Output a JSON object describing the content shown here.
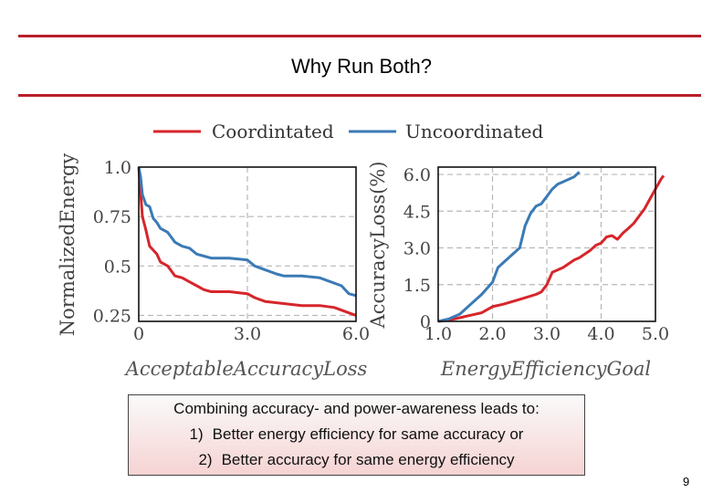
{
  "slide": {
    "title": "Why Run Both?",
    "page_number": "9",
    "callout": {
      "heading": "Combining accuracy- and power-awareness leads to:",
      "items": [
        {
          "num": "1)",
          "text": "Better energy efficiency for same accuracy or"
        },
        {
          "num": "2)",
          "text": "Better accuracy for same energy efficiency"
        }
      ]
    },
    "rule_color": "#b81f2a"
  },
  "legend": [
    {
      "name": "Coordintated",
      "color": "#d6262b"
    },
    {
      "name": "Uncoordinated",
      "color": "#3b7ab5"
    }
  ],
  "chart_data": [
    {
      "type": "line",
      "xlabel": "AcceptableAccuracyLoss",
      "ylabel": "NormalizedEnergy",
      "xlim": [
        0,
        6.0
      ],
      "ylim": [
        0.22,
        1.0
      ],
      "xticks": [
        "0",
        "3.0",
        "6.0"
      ],
      "yticks": [
        "0.25",
        "0.5",
        "0.75",
        "1.0"
      ],
      "xtick_values": [
        0,
        3.0,
        6.0
      ],
      "ytick_values": [
        0.25,
        0.5,
        0.75,
        1.0
      ],
      "grid": true,
      "series": [
        {
          "name": "Coordintated",
          "color": "#d6262b",
          "points": [
            [
              0,
              1.0
            ],
            [
              0.05,
              0.87
            ],
            [
              0.1,
              0.75
            ],
            [
              0.2,
              0.68
            ],
            [
              0.3,
              0.6
            ],
            [
              0.4,
              0.58
            ],
            [
              0.5,
              0.56
            ],
            [
              0.6,
              0.52
            ],
            [
              0.8,
              0.5
            ],
            [
              1.0,
              0.45
            ],
            [
              1.2,
              0.44
            ],
            [
              1.4,
              0.42
            ],
            [
              1.6,
              0.4
            ],
            [
              1.8,
              0.38
            ],
            [
              2.0,
              0.37
            ],
            [
              2.5,
              0.37
            ],
            [
              3.0,
              0.36
            ],
            [
              3.2,
              0.34
            ],
            [
              3.5,
              0.32
            ],
            [
              4.0,
              0.31
            ],
            [
              4.5,
              0.3
            ],
            [
              5.0,
              0.3
            ],
            [
              5.4,
              0.29
            ],
            [
              5.7,
              0.27
            ],
            [
              6.0,
              0.25
            ]
          ]
        },
        {
          "name": "Uncoordinated",
          "color": "#3b7ab5",
          "points": [
            [
              0,
              1.0
            ],
            [
              0.05,
              0.95
            ],
            [
              0.1,
              0.86
            ],
            [
              0.2,
              0.81
            ],
            [
              0.3,
              0.8
            ],
            [
              0.4,
              0.74
            ],
            [
              0.5,
              0.72
            ],
            [
              0.6,
              0.69
            ],
            [
              0.8,
              0.67
            ],
            [
              1.0,
              0.62
            ],
            [
              1.2,
              0.6
            ],
            [
              1.4,
              0.59
            ],
            [
              1.6,
              0.56
            ],
            [
              1.8,
              0.55
            ],
            [
              2.0,
              0.54
            ],
            [
              2.5,
              0.54
            ],
            [
              3.0,
              0.53
            ],
            [
              3.2,
              0.5
            ],
            [
              3.5,
              0.48
            ],
            [
              3.8,
              0.46
            ],
            [
              4.0,
              0.45
            ],
            [
              4.5,
              0.45
            ],
            [
              5.0,
              0.44
            ],
            [
              5.3,
              0.42
            ],
            [
              5.6,
              0.4
            ],
            [
              5.8,
              0.36
            ],
            [
              6.0,
              0.35
            ]
          ]
        }
      ]
    },
    {
      "type": "line",
      "xlabel": "EnergyEfficiencyGoal",
      "ylabel": "AccuracyLoss(%)",
      "xlim": [
        1.0,
        5.0
      ],
      "ylim": [
        0,
        6.3
      ],
      "xticks": [
        "1.0",
        "2.0",
        "3.0",
        "4.0",
        "5.0"
      ],
      "yticks": [
        "0",
        "1.5",
        "3.0",
        "4.5",
        "6.0"
      ],
      "xtick_values": [
        1.0,
        2.0,
        3.0,
        4.0,
        5.0
      ],
      "ytick_values": [
        0,
        1.5,
        3.0,
        4.5,
        6.0
      ],
      "grid": true,
      "series": [
        {
          "name": "Coordintated",
          "color": "#d6262b",
          "points": [
            [
              1.0,
              0
            ],
            [
              1.2,
              0.05
            ],
            [
              1.5,
              0.2
            ],
            [
              1.8,
              0.35
            ],
            [
              2.0,
              0.6
            ],
            [
              2.2,
              0.7
            ],
            [
              2.5,
              0.9
            ],
            [
              2.8,
              1.1
            ],
            [
              2.9,
              1.2
            ],
            [
              3.0,
              1.5
            ],
            [
              3.1,
              2.0
            ],
            [
              3.3,
              2.2
            ],
            [
              3.5,
              2.5
            ],
            [
              3.6,
              2.6
            ],
            [
              3.8,
              2.9
            ],
            [
              3.9,
              3.1
            ],
            [
              4.0,
              3.2
            ],
            [
              4.1,
              3.45
            ],
            [
              4.2,
              3.5
            ],
            [
              4.3,
              3.35
            ],
            [
              4.4,
              3.6
            ],
            [
              4.5,
              3.8
            ],
            [
              4.6,
              4.0
            ],
            [
              4.8,
              4.6
            ],
            [
              4.9,
              5.0
            ],
            [
              5.0,
              5.4
            ],
            [
              5.1,
              5.8
            ],
            [
              5.15,
              5.95
            ]
          ]
        },
        {
          "name": "Uncoordinated",
          "color": "#3b7ab5",
          "points": [
            [
              1.0,
              0
            ],
            [
              1.2,
              0.1
            ],
            [
              1.4,
              0.3
            ],
            [
              1.6,
              0.7
            ],
            [
              1.8,
              1.1
            ],
            [
              2.0,
              1.6
            ],
            [
              2.1,
              2.2
            ],
            [
              2.2,
              2.4
            ],
            [
              2.4,
              2.8
            ],
            [
              2.5,
              3.0
            ],
            [
              2.6,
              3.9
            ],
            [
              2.7,
              4.4
            ],
            [
              2.8,
              4.7
            ],
            [
              2.9,
              4.8
            ],
            [
              3.0,
              5.1
            ],
            [
              3.1,
              5.4
            ],
            [
              3.2,
              5.6
            ],
            [
              3.3,
              5.7
            ],
            [
              3.5,
              5.9
            ],
            [
              3.6,
              6.1
            ]
          ]
        }
      ]
    }
  ]
}
